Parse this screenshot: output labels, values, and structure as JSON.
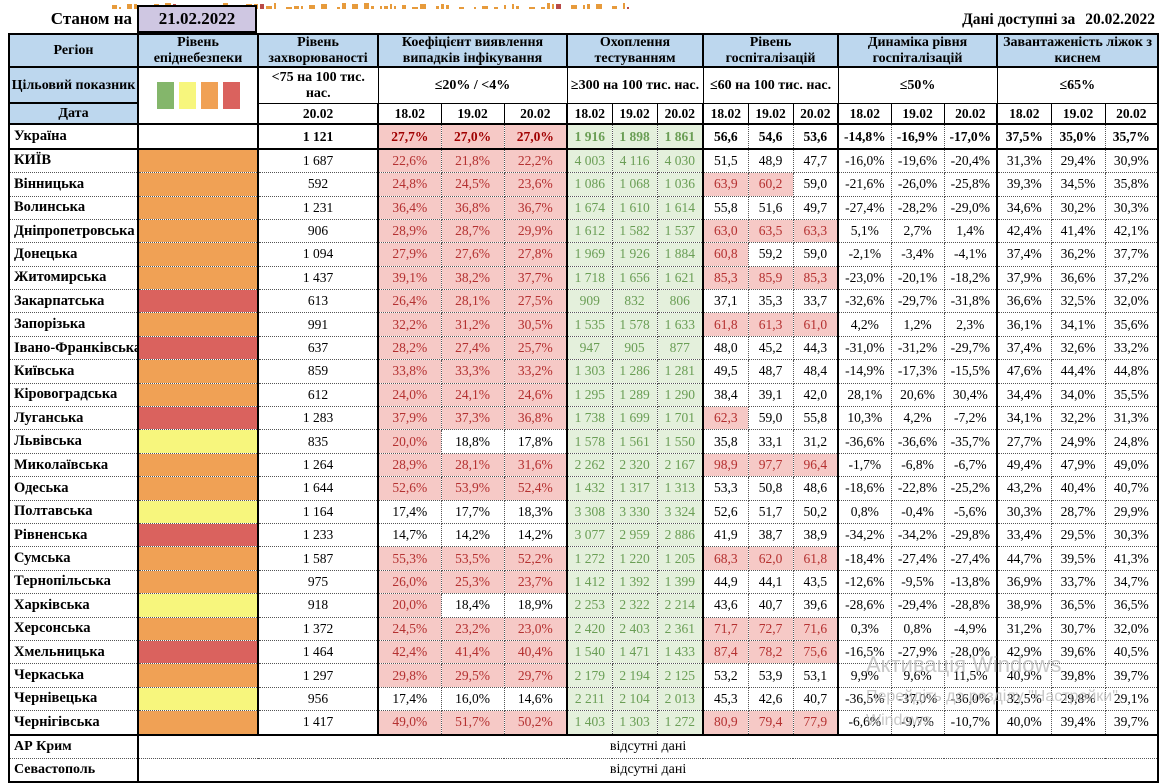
{
  "top": {
    "as_of_label": "Станом на",
    "as_of_date": "21.02.2022",
    "available_label": "Дані доступні за",
    "available_date": "20.02.2022"
  },
  "header": {
    "region": "Регіон",
    "target_label": "Цільовий показник",
    "date_label": "Дата",
    "groups": [
      {
        "kind": "danger",
        "title": "Рівень епіднебезпеки",
        "target": "",
        "dates": []
      },
      {
        "kind": "incidence",
        "title": "Рівень захворюваності",
        "target": "<75 на 100 тис. нас.",
        "dates": [
          "20.02"
        ]
      },
      {
        "kind": "detection",
        "title": "Коефіцієнт виявлення випадків інфікування",
        "target": "≤20% / <4%",
        "dates": [
          "18.02",
          "19.02",
          "20.02"
        ]
      },
      {
        "kind": "testing",
        "title": "Охоплення тестуванням",
        "target": "≥300 на 100 тис. нас.",
        "dates": [
          "18.02",
          "19.02",
          "20.02"
        ]
      },
      {
        "kind": "hosp",
        "title": "Рівень госпіталізацій",
        "target": "≤60 на 100 тис. нас.",
        "dates": [
          "18.02",
          "19.02",
          "20.02"
        ]
      },
      {
        "kind": "dynamics",
        "title": "Динаміка рівня госпіталізацій",
        "target": "≤50%",
        "dates": [
          "18.02",
          "19.02",
          "20.02"
        ]
      },
      {
        "kind": "oxygen",
        "title": "Завантаженість ліжок з киснем",
        "target": "≤65%",
        "dates": [
          "18.02",
          "19.02",
          "20.02"
        ]
      }
    ],
    "legend_order": [
      "green",
      "yellow",
      "orange",
      "red"
    ]
  },
  "thresholds": {
    "detection_alert_gte": 20,
    "hosp_alert_gt": 60
  },
  "rows": [
    {
      "region": "Україна",
      "danger": null,
      "em": true,
      "incidence": "1 121",
      "detection": [
        "27,7%",
        "27,0%",
        "27,0%"
      ],
      "testing": [
        "1 916",
        "1 898",
        "1 861"
      ],
      "hosp": [
        "56,6",
        "54,6",
        "53,6"
      ],
      "dynamics": [
        "-14,8%",
        "-16,9%",
        "-17,0%"
      ],
      "oxygen": [
        "37,5%",
        "35,0%",
        "35,7%"
      ]
    },
    {
      "region": "КИЇВ",
      "danger": "orange",
      "incidence": "1 687",
      "detection": [
        "22,6%",
        "21,8%",
        "22,2%"
      ],
      "testing": [
        "4 003",
        "4 116",
        "4 030"
      ],
      "hosp": [
        "51,5",
        "48,9",
        "47,7"
      ],
      "dynamics": [
        "-16,0%",
        "-19,6%",
        "-20,4%"
      ],
      "oxygen": [
        "31,3%",
        "29,4%",
        "30,9%"
      ]
    },
    {
      "region": "Вінницька",
      "danger": "orange",
      "incidence": "592",
      "detection": [
        "24,8%",
        "24,5%",
        "23,6%"
      ],
      "testing": [
        "1 086",
        "1 068",
        "1 036"
      ],
      "hosp": [
        "63,9",
        "60,2",
        "59,0"
      ],
      "dynamics": [
        "-21,6%",
        "-26,0%",
        "-25,8%"
      ],
      "oxygen": [
        "39,3%",
        "34,5%",
        "35,8%"
      ]
    },
    {
      "region": "Волинська",
      "danger": "orange",
      "incidence": "1 231",
      "detection": [
        "36,4%",
        "36,8%",
        "36,7%"
      ],
      "testing": [
        "1 674",
        "1 610",
        "1 614"
      ],
      "hosp": [
        "55,8",
        "51,6",
        "49,7"
      ],
      "dynamics": [
        "-27,4%",
        "-28,2%",
        "-29,0%"
      ],
      "oxygen": [
        "34,6%",
        "30,2%",
        "30,3%"
      ]
    },
    {
      "region": "Дніпропетровська",
      "danger": "orange",
      "incidence": "906",
      "detection": [
        "28,9%",
        "28,7%",
        "29,9%"
      ],
      "testing": [
        "1 612",
        "1 582",
        "1 537"
      ],
      "hosp": [
        "63,0",
        "63,5",
        "63,3"
      ],
      "dynamics": [
        "5,1%",
        "2,7%",
        "1,4%"
      ],
      "oxygen": [
        "42,4%",
        "41,4%",
        "42,1%"
      ]
    },
    {
      "region": "Донецька",
      "danger": "orange",
      "incidence": "1 094",
      "detection": [
        "27,9%",
        "27,6%",
        "27,8%"
      ],
      "testing": [
        "1 969",
        "1 926",
        "1 884"
      ],
      "hosp": [
        "60,8",
        "59,2",
        "59,0"
      ],
      "dynamics": [
        "-2,1%",
        "-3,4%",
        "-4,1%"
      ],
      "oxygen": [
        "37,4%",
        "36,2%",
        "37,7%"
      ]
    },
    {
      "region": "Житомирська",
      "danger": "orange",
      "incidence": "1 437",
      "detection": [
        "39,1%",
        "38,2%",
        "37,7%"
      ],
      "testing": [
        "1 718",
        "1 656",
        "1 621"
      ],
      "hosp": [
        "85,3",
        "85,9",
        "85,3"
      ],
      "dynamics": [
        "-23,0%",
        "-20,1%",
        "-18,2%"
      ],
      "oxygen": [
        "37,9%",
        "36,6%",
        "37,2%"
      ]
    },
    {
      "region": "Закарпатська",
      "danger": "red",
      "incidence": "613",
      "detection": [
        "26,4%",
        "28,1%",
        "27,5%"
      ],
      "testing": [
        "909",
        "832",
        "806"
      ],
      "hosp": [
        "37,1",
        "35,3",
        "33,7"
      ],
      "dynamics": [
        "-32,6%",
        "-29,7%",
        "-31,8%"
      ],
      "oxygen": [
        "36,6%",
        "32,5%",
        "32,0%"
      ]
    },
    {
      "region": "Запорізька",
      "danger": "orange",
      "incidence": "991",
      "detection": [
        "32,2%",
        "31,2%",
        "30,5%"
      ],
      "testing": [
        "1 535",
        "1 578",
        "1 633"
      ],
      "hosp": [
        "61,8",
        "61,3",
        "61,0"
      ],
      "dynamics": [
        "4,2%",
        "1,2%",
        "2,3%"
      ],
      "oxygen": [
        "36,1%",
        "34,1%",
        "35,6%"
      ]
    },
    {
      "region": "Івано-Франківська",
      "danger": "red",
      "incidence": "637",
      "detection": [
        "28,2%",
        "27,4%",
        "25,7%"
      ],
      "testing": [
        "947",
        "905",
        "877"
      ],
      "hosp": [
        "48,0",
        "45,2",
        "44,3"
      ],
      "dynamics": [
        "-31,0%",
        "-31,2%",
        "-29,7%"
      ],
      "oxygen": [
        "37,4%",
        "32,6%",
        "33,2%"
      ]
    },
    {
      "region": "Київська",
      "danger": "orange",
      "incidence": "859",
      "detection": [
        "33,8%",
        "33,3%",
        "33,2%"
      ],
      "testing": [
        "1 303",
        "1 286",
        "1 281"
      ],
      "hosp": [
        "49,5",
        "48,7",
        "48,4"
      ],
      "dynamics": [
        "-14,9%",
        "-17,3%",
        "-15,5%"
      ],
      "oxygen": [
        "47,6%",
        "44,4%",
        "44,8%"
      ]
    },
    {
      "region": "Кіровоградська",
      "danger": "orange",
      "incidence": "612",
      "detection": [
        "24,0%",
        "24,1%",
        "24,6%"
      ],
      "testing": [
        "1 295",
        "1 289",
        "1 290"
      ],
      "hosp": [
        "38,4",
        "39,1",
        "42,0"
      ],
      "dynamics": [
        "28,1%",
        "20,6%",
        "30,4%"
      ],
      "oxygen": [
        "34,4%",
        "34,0%",
        "35,5%"
      ]
    },
    {
      "region": "Луганська",
      "danger": "red",
      "incidence": "1 283",
      "detection": [
        "37,9%",
        "37,3%",
        "36,8%"
      ],
      "testing": [
        "1 738",
        "1 699",
        "1 701"
      ],
      "hosp": [
        "62,3",
        "59,0",
        "55,8"
      ],
      "dynamics": [
        "10,3%",
        "4,2%",
        "-7,2%"
      ],
      "oxygen": [
        "34,1%",
        "32,2%",
        "31,3%"
      ]
    },
    {
      "region": "Львівська",
      "danger": "yellow",
      "incidence": "835",
      "detection": [
        "20,0%",
        "18,8%",
        "17,8%"
      ],
      "testing": [
        "1 578",
        "1 561",
        "1 550"
      ],
      "hosp": [
        "35,8",
        "33,1",
        "31,2"
      ],
      "dynamics": [
        "-36,6%",
        "-36,6%",
        "-35,7%"
      ],
      "oxygen": [
        "27,7%",
        "24,9%",
        "24,8%"
      ]
    },
    {
      "region": "Миколаївська",
      "danger": "orange",
      "incidence": "1 264",
      "detection": [
        "28,9%",
        "28,1%",
        "31,6%"
      ],
      "testing": [
        "2 262",
        "2 320",
        "2 167"
      ],
      "hosp": [
        "98,9",
        "97,7",
        "96,4"
      ],
      "dynamics": [
        "-1,7%",
        "-6,8%",
        "-6,7%"
      ],
      "oxygen": [
        "49,4%",
        "47,9%",
        "49,0%"
      ]
    },
    {
      "region": "Одеська",
      "danger": "orange",
      "incidence": "1 644",
      "detection": [
        "52,6%",
        "53,9%",
        "52,4%"
      ],
      "testing": [
        "1 432",
        "1 317",
        "1 313"
      ],
      "hosp": [
        "53,3",
        "50,8",
        "48,6"
      ],
      "dynamics": [
        "-18,6%",
        "-22,8%",
        "-25,2%"
      ],
      "oxygen": [
        "43,2%",
        "40,4%",
        "40,7%"
      ]
    },
    {
      "region": "Полтавська",
      "danger": "yellow",
      "incidence": "1 164",
      "detection": [
        "17,4%",
        "17,7%",
        "18,3%"
      ],
      "testing": [
        "3 308",
        "3 330",
        "3 324"
      ],
      "hosp": [
        "52,6",
        "51,7",
        "50,2"
      ],
      "dynamics": [
        "0,8%",
        "-0,4%",
        "-5,6%"
      ],
      "oxygen": [
        "30,3%",
        "28,7%",
        "29,9%"
      ]
    },
    {
      "region": "Рівненська",
      "danger": "red",
      "incidence": "1 233",
      "detection": [
        "14,7%",
        "14,2%",
        "14,2%"
      ],
      "testing": [
        "3 077",
        "2 959",
        "2 886"
      ],
      "hosp": [
        "41,9",
        "38,7",
        "38,9"
      ],
      "dynamics": [
        "-34,2%",
        "-34,2%",
        "-29,8%"
      ],
      "oxygen": [
        "33,4%",
        "29,5%",
        "30,3%"
      ]
    },
    {
      "region": "Сумська",
      "danger": "orange",
      "incidence": "1 587",
      "detection": [
        "55,3%",
        "53,5%",
        "52,2%"
      ],
      "testing": [
        "1 272",
        "1 220",
        "1 205"
      ],
      "hosp": [
        "68,3",
        "62,0",
        "61,8"
      ],
      "dynamics": [
        "-18,4%",
        "-27,4%",
        "-27,4%"
      ],
      "oxygen": [
        "44,7%",
        "39,5%",
        "41,3%"
      ]
    },
    {
      "region": "Тернопільська",
      "danger": "orange",
      "incidence": "975",
      "detection": [
        "26,0%",
        "25,3%",
        "23,7%"
      ],
      "testing": [
        "1 412",
        "1 392",
        "1 399"
      ],
      "hosp": [
        "44,9",
        "44,1",
        "43,5"
      ],
      "dynamics": [
        "-12,6%",
        "-9,5%",
        "-13,8%"
      ],
      "oxygen": [
        "36,9%",
        "33,7%",
        "34,7%"
      ]
    },
    {
      "region": "Харківська",
      "danger": "yellow",
      "incidence": "918",
      "detection": [
        "20,0%",
        "18,4%",
        "18,9%"
      ],
      "testing": [
        "2 253",
        "2 322",
        "2 214"
      ],
      "hosp": [
        "43,6",
        "40,7",
        "39,6"
      ],
      "dynamics": [
        "-28,6%",
        "-29,4%",
        "-28,8%"
      ],
      "oxygen": [
        "38,9%",
        "36,5%",
        "36,5%"
      ]
    },
    {
      "region": "Херсонська",
      "danger": "orange",
      "incidence": "1 372",
      "detection": [
        "24,5%",
        "23,2%",
        "23,0%"
      ],
      "testing": [
        "2 420",
        "2 403",
        "2 361"
      ],
      "hosp": [
        "71,7",
        "72,7",
        "71,6"
      ],
      "dynamics": [
        "0,3%",
        "0,8%",
        "-4,9%"
      ],
      "oxygen": [
        "31,2%",
        "30,7%",
        "32,0%"
      ]
    },
    {
      "region": "Хмельницька",
      "danger": "red",
      "incidence": "1 464",
      "detection": [
        "42,4%",
        "41,4%",
        "40,4%"
      ],
      "testing": [
        "1 540",
        "1 471",
        "1 433"
      ],
      "hosp": [
        "87,4",
        "78,2",
        "75,6"
      ],
      "dynamics": [
        "-16,5%",
        "-27,9%",
        "-28,0%"
      ],
      "oxygen": [
        "42,9%",
        "39,6%",
        "40,5%"
      ]
    },
    {
      "region": "Черкаська",
      "danger": "orange",
      "incidence": "1 297",
      "detection": [
        "29,8%",
        "29,5%",
        "29,7%"
      ],
      "testing": [
        "2 179",
        "2 194",
        "2 125"
      ],
      "hosp": [
        "53,2",
        "53,9",
        "53,1"
      ],
      "dynamics": [
        "9,9%",
        "9,6%",
        "11,5%"
      ],
      "oxygen": [
        "40,9%",
        "39,8%",
        "39,7%"
      ]
    },
    {
      "region": "Чернівецька",
      "danger": "yellow",
      "incidence": "956",
      "detection": [
        "17,4%",
        "16,0%",
        "14,6%"
      ],
      "testing": [
        "2 211",
        "2 104",
        "2 013"
      ],
      "hosp": [
        "45,3",
        "42,6",
        "40,7"
      ],
      "dynamics": [
        "-36,5%",
        "-37,0%",
        "-36,0%"
      ],
      "oxygen": [
        "32,5%",
        "29,8%",
        "29,1%"
      ]
    },
    {
      "region": "Чернігівська",
      "danger": "orange",
      "incidence": "1 417",
      "detection": [
        "49,0%",
        "51,7%",
        "50,2%"
      ],
      "testing": [
        "1 403",
        "1 303",
        "1 272"
      ],
      "hosp": [
        "80,9",
        "79,4",
        "77,9"
      ],
      "dynamics": [
        "-6,6%",
        "-9,7%",
        "-10,7%"
      ],
      "oxygen": [
        "40,0%",
        "39,4%",
        "39,7%"
      ]
    }
  ],
  "no_data_rows": [
    {
      "region": "АР Крим",
      "text": "відсутні дані"
    },
    {
      "region": "Севастополь",
      "text": "відсутні дані"
    }
  ],
  "watermark": {
    "line1": "Активація Windows",
    "line2": "Перейдіть до розділу \"Настройки\",",
    "line3": "Windows."
  },
  "colors": {
    "header_bg": "#bdd7ee",
    "date_box_bg": "#cfc7e2",
    "alert_bg": "#f6c9c6",
    "alert_text": "#b43030",
    "alert_text_strong": "#a00000",
    "ok_bg": "#e4f0dc",
    "ok_text": "#6a9e55",
    "danger_green": "#84b66b",
    "danger_yellow": "#f7f67d",
    "danger_orange": "#f0a155",
    "danger_red": "#da625e",
    "title_fragment": "#e79b3c",
    "title_fragment_alt": "#b94a48"
  }
}
